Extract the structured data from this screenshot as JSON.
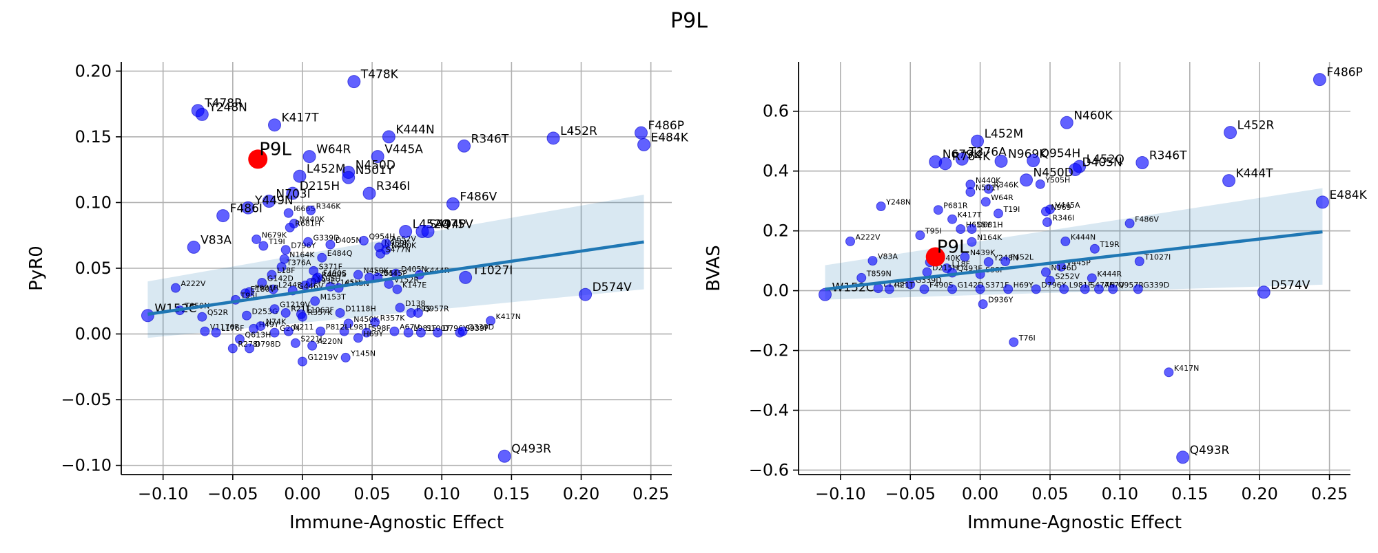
{
  "title": "P9L",
  "chart_data": [
    {
      "type": "scatter",
      "xlabel": "Immune-Agnostic Effect",
      "ylabel": "PyR0",
      "xlim": [
        -0.13,
        0.265
      ],
      "ylim": [
        -0.107,
        0.207
      ],
      "xticks": [
        "−0.10",
        "−0.05",
        "0.00",
        "0.05",
        "0.10",
        "0.15",
        "0.20",
        "0.25"
      ],
      "xtick_values": [
        -0.1,
        -0.05,
        0,
        0.05,
        0.1,
        0.15,
        0.2,
        0.25
      ],
      "yticks": [
        "−0.10",
        "−0.05",
        "0.00",
        "0.05",
        "0.10",
        "0.15",
        "0.20"
      ],
      "ytick_values": [
        -0.1,
        -0.05,
        0,
        0.05,
        0.1,
        0.15,
        0.2
      ],
      "grid": true,
      "highlight": {
        "label": "P9L",
        "x": -0.032,
        "y": 0.133,
        "color": "#ff0000"
      },
      "regression": {
        "x": [
          -0.111,
          0.245
        ],
        "y": [
          0.015,
          0.07
        ],
        "ci_lower_end": 0.034,
        "ci_upper_end": 0.106,
        "ci_lower_start": -0.003,
        "ci_upper_start": 0.04,
        "color": "#1f77b4"
      },
      "points": [
        {
          "label": "T478K",
          "x": 0.037,
          "y": 0.192,
          "big": true
        },
        {
          "label": "T478R",
          "x": -0.075,
          "y": 0.17,
          "big": true
        },
        {
          "label": "Y248N",
          "x": -0.072,
          "y": 0.167,
          "big": true
        },
        {
          "label": "K417T",
          "x": -0.02,
          "y": 0.159,
          "big": true
        },
        {
          "label": "K444N",
          "x": 0.062,
          "y": 0.15,
          "big": true
        },
        {
          "label": "V445A",
          "x": 0.054,
          "y": 0.135,
          "big": true
        },
        {
          "label": "W64R",
          "x": 0.005,
          "y": 0.135,
          "big": true
        },
        {
          "label": "R346T",
          "x": 0.116,
          "y": 0.143,
          "big": true
        },
        {
          "label": "L452R",
          "x": 0.18,
          "y": 0.149,
          "big": true
        },
        {
          "label": "F486P",
          "x": 0.243,
          "y": 0.153,
          "big": true
        },
        {
          "label": "E484K",
          "x": 0.245,
          "y": 0.144,
          "big": true
        },
        {
          "label": "N450D",
          "x": 0.033,
          "y": 0.123,
          "big": true
        },
        {
          "label": "L452M",
          "x": -0.002,
          "y": 0.12,
          "big": true
        },
        {
          "label": "N501Y",
          "x": 0.033,
          "y": 0.119,
          "big": true
        },
        {
          "label": "D215H",
          "x": -0.007,
          "y": 0.107,
          "big": true
        },
        {
          "label": "R346I",
          "x": 0.048,
          "y": 0.107,
          "big": true
        },
        {
          "label": "N703I",
          "x": -0.024,
          "y": 0.101,
          "big": true
        },
        {
          "label": "F486V",
          "x": 0.108,
          "y": 0.099,
          "big": true
        },
        {
          "label": "Y449N",
          "x": -0.039,
          "y": 0.096,
          "big": true
        },
        {
          "label": "F486I",
          "x": -0.057,
          "y": 0.09,
          "big": true
        },
        {
          "label": "I666S",
          "x": -0.01,
          "y": 0.092
        },
        {
          "label": "R346K",
          "x": 0.006,
          "y": 0.094
        },
        {
          "label": "N440K",
          "x": -0.006,
          "y": 0.084
        },
        {
          "label": "R681H",
          "x": -0.009,
          "y": 0.081
        },
        {
          "label": "V83A",
          "x": -0.078,
          "y": 0.066,
          "big": true
        },
        {
          "label": "N679K",
          "x": -0.033,
          "y": 0.072
        },
        {
          "label": "T19I",
          "x": -0.028,
          "y": 0.067
        },
        {
          "label": "D796Y",
          "x": -0.012,
          "y": 0.064
        },
        {
          "label": "T376A",
          "x": -0.015,
          "y": 0.051
        },
        {
          "label": "N164K",
          "x": -0.013,
          "y": 0.057
        },
        {
          "label": "G339D",
          "x": 0.004,
          "y": 0.07
        },
        {
          "label": "D405N",
          "x": 0.02,
          "y": 0.068
        },
        {
          "label": "Q954H",
          "x": 0.044,
          "y": 0.071
        },
        {
          "label": "N969K",
          "x": 0.055,
          "y": 0.066
        },
        {
          "label": "A652V",
          "x": 0.06,
          "y": 0.069
        },
        {
          "label": "N460K",
          "x": 0.06,
          "y": 0.064
        },
        {
          "label": "S477N",
          "x": 0.056,
          "y": 0.061
        },
        {
          "label": "E484Q",
          "x": 0.014,
          "y": 0.058
        },
        {
          "label": "S371F",
          "x": 0.008,
          "y": 0.048
        },
        {
          "label": "L452Q",
          "x": 0.074,
          "y": 0.078,
          "big": true
        },
        {
          "label": "S494P",
          "x": 0.086,
          "y": 0.078,
          "big": true
        },
        {
          "label": "A475V",
          "x": 0.09,
          "y": 0.078,
          "big": true
        },
        {
          "label": "L18F",
          "x": -0.022,
          "y": 0.045
        },
        {
          "label": "G142D",
          "x": -0.029,
          "y": 0.039
        },
        {
          "label": "L244S",
          "x": -0.021,
          "y": 0.034
        },
        {
          "label": "R408S",
          "x": 0.01,
          "y": 0.042
        },
        {
          "label": "Y145H",
          "x": 0.02,
          "y": 0.036
        },
        {
          "label": "N450K",
          "x": 0.04,
          "y": 0.045
        },
        {
          "label": "S255F",
          "x": 0.048,
          "y": 0.043
        },
        {
          "label": "D405N",
          "x": 0.067,
          "y": 0.046
        },
        {
          "label": "K444R",
          "x": 0.084,
          "y": 0.045
        },
        {
          "label": "K147E",
          "x": 0.068,
          "y": 0.034
        },
        {
          "label": "V152R",
          "x": 0.062,
          "y": 0.038
        },
        {
          "label": "A222V",
          "x": -0.091,
          "y": 0.035
        },
        {
          "label": "V445P",
          "x": 0.054,
          "y": 0.043
        },
        {
          "label": "P681R",
          "x": -0.038,
          "y": 0.032
        },
        {
          "label": "E180V",
          "x": -0.041,
          "y": 0.031
        },
        {
          "label": "Q493E",
          "x": 0.002,
          "y": 0.037
        },
        {
          "label": "Y505H",
          "x": 0.006,
          "y": 0.039
        },
        {
          "label": "G446V",
          "x": -0.007,
          "y": 0.033
        },
        {
          "label": "A245N",
          "x": 0.026,
          "y": 0.035
        },
        {
          "label": "F490S",
          "x": 0.011,
          "y": 0.043
        },
        {
          "label": "T1027I",
          "x": 0.117,
          "y": 0.043,
          "big": true
        },
        {
          "label": "D574V",
          "x": 0.203,
          "y": 0.03,
          "big": true
        },
        {
          "label": "T95I",
          "x": -0.048,
          "y": 0.026
        },
        {
          "label": "M153T",
          "x": 0.009,
          "y": 0.025
        },
        {
          "label": "W152C",
          "x": -0.111,
          "y": 0.014,
          "big": true
        },
        {
          "label": "T859N",
          "x": -0.088,
          "y": 0.018
        },
        {
          "label": "Q52R",
          "x": -0.072,
          "y": 0.013
        },
        {
          "label": "D253G",
          "x": -0.04,
          "y": 0.014
        },
        {
          "label": "G1219V",
          "x": -0.02,
          "y": 0.019
        },
        {
          "label": "R21T",
          "x": -0.012,
          "y": 0.016
        },
        {
          "label": "L1063F",
          "x": -0.001,
          "y": 0.015
        },
        {
          "label": "R357K",
          "x": 0.0,
          "y": 0.013
        },
        {
          "label": "D1118H",
          "x": 0.027,
          "y": 0.016
        },
        {
          "label": "N450K",
          "x": 0.033,
          "y": 0.008
        },
        {
          "label": "R357K",
          "x": 0.052,
          "y": 0.009
        },
        {
          "label": "D138",
          "x": 0.07,
          "y": 0.02
        },
        {
          "label": "P9S",
          "x": 0.078,
          "y": 0.016
        },
        {
          "label": "Q957R",
          "x": 0.083,
          "y": 0.016
        },
        {
          "label": "K417N",
          "x": 0.135,
          "y": 0.01
        },
        {
          "label": "V1176F",
          "x": -0.07,
          "y": 0.002
        },
        {
          "label": "L176F",
          "x": -0.062,
          "y": 0.001
        },
        {
          "label": "H49Y",
          "x": -0.035,
          "y": 0.004
        },
        {
          "label": "N74K",
          "x": -0.03,
          "y": 0.006
        },
        {
          "label": "G204",
          "x": -0.02,
          "y": 0.001
        },
        {
          "label": "N211",
          "x": -0.01,
          "y": 0.002
        },
        {
          "label": "L981F",
          "x": 0.03,
          "y": 0.002
        },
        {
          "label": "S98F",
          "x": 0.046,
          "y": 0.001
        },
        {
          "label": "A67V",
          "x": 0.066,
          "y": 0.002
        },
        {
          "label": "L981F",
          "x": 0.076,
          "y": 0.001
        },
        {
          "label": "S1007",
          "x": 0.085,
          "y": 0.001
        },
        {
          "label": "D796Y",
          "x": 0.097,
          "y": 0.001
        },
        {
          "label": "S939F",
          "x": 0.113,
          "y": 0.001
        },
        {
          "label": "G339D",
          "x": 0.115,
          "y": 0.002
        },
        {
          "label": "P812L",
          "x": 0.013,
          "y": 0.002
        },
        {
          "label": "H69Y",
          "x": 0.04,
          "y": -0.003
        },
        {
          "label": "Q613H",
          "x": -0.045,
          "y": -0.004
        },
        {
          "label": "R278I",
          "x": -0.05,
          "y": -0.011
        },
        {
          "label": "D798D",
          "x": -0.038,
          "y": -0.011
        },
        {
          "label": "S221L",
          "x": -0.005,
          "y": -0.007
        },
        {
          "label": "A220N",
          "x": 0.007,
          "y": -0.009
        },
        {
          "label": "Y145N",
          "x": 0.031,
          "y": -0.018
        },
        {
          "label": "G1219V",
          "x": 0.0,
          "y": -0.021
        },
        {
          "label": "Q493R",
          "x": 0.145,
          "y": -0.093,
          "big": true
        }
      ]
    },
    {
      "type": "scatter",
      "xlabel": "Immune-Agnostic Effect",
      "ylabel": "BVAS",
      "xlim": [
        -0.13,
        0.265
      ],
      "ylim": [
        -0.615,
        0.765
      ],
      "xticks": [
        "−0.10",
        "−0.05",
        "0.00",
        "0.05",
        "0.10",
        "0.15",
        "0.20",
        "0.25"
      ],
      "xtick_values": [
        -0.1,
        -0.05,
        0,
        0.05,
        0.1,
        0.15,
        0.2,
        0.25
      ],
      "yticks": [
        "−0.6",
        "−0.4",
        "−0.2",
        "0.0",
        "0.2",
        "0.4",
        "0.6"
      ],
      "ytick_values": [
        -0.6,
        -0.4,
        -0.2,
        0,
        0.2,
        0.4,
        0.6
      ],
      "grid": true,
      "highlight": {
        "label": "P9L",
        "x": -0.032,
        "y": 0.113,
        "color": "#ff0000"
      },
      "regression": {
        "x": [
          -0.111,
          0.245
        ],
        "y": [
          0.005,
          0.197
        ],
        "ci_lower_end": 0.02,
        "ci_upper_end": 0.343,
        "ci_lower_start": -0.03,
        "ci_upper_start": 0.085,
        "color": "#1f77b4"
      },
      "points": [
        {
          "label": "F486P",
          "x": 0.243,
          "y": 0.706,
          "big": true
        },
        {
          "label": "N460K",
          "x": 0.062,
          "y": 0.562,
          "big": true
        },
        {
          "label": "L452R",
          "x": 0.179,
          "y": 0.529,
          "big": true
        },
        {
          "label": "L452M",
          "x": -0.002,
          "y": 0.5,
          "big": true
        },
        {
          "label": "N679K",
          "x": -0.032,
          "y": 0.431,
          "big": true
        },
        {
          "label": "T376A",
          "x": -0.013,
          "y": 0.44,
          "big": true
        },
        {
          "label": "R764K",
          "x": -0.025,
          "y": 0.425,
          "big": true
        },
        {
          "label": "N969K",
          "x": 0.015,
          "y": 0.433,
          "big": true
        },
        {
          "label": "Q954H",
          "x": 0.038,
          "y": 0.435,
          "big": true
        },
        {
          "label": "L452Q",
          "x": 0.071,
          "y": 0.415,
          "big": true
        },
        {
          "label": "D405N",
          "x": 0.068,
          "y": 0.405,
          "big": true
        },
        {
          "label": "R346T",
          "x": 0.116,
          "y": 0.428,
          "big": true
        },
        {
          "label": "K444T",
          "x": 0.178,
          "y": 0.368,
          "big": true
        },
        {
          "label": "N450D",
          "x": 0.033,
          "y": 0.37,
          "big": true
        },
        {
          "label": "Y505H",
          "x": 0.043,
          "y": 0.356
        },
        {
          "label": "N440K",
          "x": -0.007,
          "y": 0.355
        },
        {
          "label": "R346K",
          "x": 0.006,
          "y": 0.34
        },
        {
          "label": "N501Y",
          "x": -0.007,
          "y": 0.33
        },
        {
          "label": "W64R",
          "x": 0.004,
          "y": 0.297
        },
        {
          "label": "E484K",
          "x": 0.245,
          "y": 0.296,
          "big": true
        },
        {
          "label": "Y248N",
          "x": -0.071,
          "y": 0.282
        },
        {
          "label": "P681R",
          "x": -0.03,
          "y": 0.27
        },
        {
          "label": "V445A",
          "x": 0.05,
          "y": 0.272
        },
        {
          "label": "N969",
          "x": 0.047,
          "y": 0.265
        },
        {
          "label": "T19I",
          "x": 0.013,
          "y": 0.258
        },
        {
          "label": "K417T",
          "x": -0.02,
          "y": 0.239
        },
        {
          "label": "R346I",
          "x": 0.048,
          "y": 0.229
        },
        {
          "label": "F486V",
          "x": 0.107,
          "y": 0.225
        },
        {
          "label": "H655Y",
          "x": -0.014,
          "y": 0.206
        },
        {
          "label": "D681H",
          "x": -0.006,
          "y": 0.206
        },
        {
          "label": "T95I",
          "x": -0.043,
          "y": 0.185
        },
        {
          "label": "A222V",
          "x": -0.093,
          "y": 0.165
        },
        {
          "label": "N164K",
          "x": -0.006,
          "y": 0.163
        },
        {
          "label": "K444N",
          "x": 0.061,
          "y": 0.165
        },
        {
          "label": "T19R",
          "x": 0.082,
          "y": 0.14
        },
        {
          "label": "V83A",
          "x": -0.077,
          "y": 0.1
        },
        {
          "label": "N439K",
          "x": -0.011,
          "y": 0.113
        },
        {
          "label": "N440K",
          "x": -0.036,
          "y": 0.095
        },
        {
          "label": "Y248N",
          "x": 0.006,
          "y": 0.096
        },
        {
          "label": "F452L",
          "x": 0.018,
          "y": 0.098
        },
        {
          "label": "T1027I",
          "x": 0.114,
          "y": 0.098
        },
        {
          "label": "L18F",
          "x": -0.024,
          "y": 0.075
        },
        {
          "label": "V445P",
          "x": 0.058,
          "y": 0.08
        },
        {
          "label": "D215H",
          "x": -0.038,
          "y": 0.062
        },
        {
          "label": "Q493E",
          "x": -0.02,
          "y": 0.06
        },
        {
          "label": "N146D",
          "x": 0.047,
          "y": 0.062
        },
        {
          "label": "S98F",
          "x": 0.0,
          "y": 0.055
        },
        {
          "label": "T859N",
          "x": -0.085,
          "y": 0.043
        },
        {
          "label": "K444R",
          "x": 0.08,
          "y": 0.042
        },
        {
          "label": "S252V",
          "x": 0.05,
          "y": 0.034
        },
        {
          "label": "G339D",
          "x": -0.05,
          "y": 0.021
        },
        {
          "label": "W152C",
          "x": -0.111,
          "y": -0.013,
          "big": true
        },
        {
          "label": "L176F",
          "x": -0.073,
          "y": 0.008
        },
        {
          "label": "R21T",
          "x": -0.065,
          "y": 0.005
        },
        {
          "label": "F490S",
          "x": -0.04,
          "y": 0.005
        },
        {
          "label": "G142D",
          "x": -0.02,
          "y": 0.005
        },
        {
          "label": "S371F",
          "x": 0.0,
          "y": 0.005
        },
        {
          "label": "H69Y",
          "x": 0.02,
          "y": 0.005
        },
        {
          "label": "D796Y",
          "x": 0.04,
          "y": 0.005
        },
        {
          "label": "L981F",
          "x": 0.06,
          "y": 0.005
        },
        {
          "label": "S477N",
          "x": 0.075,
          "y": 0.005
        },
        {
          "label": "A67V",
          "x": 0.085,
          "y": 0.005
        },
        {
          "label": "Q957R",
          "x": 0.095,
          "y": 0.005
        },
        {
          "label": "G339D",
          "x": 0.113,
          "y": 0.005
        },
        {
          "label": "D574V",
          "x": 0.203,
          "y": -0.005,
          "big": true
        },
        {
          "label": "D936Y",
          "x": 0.002,
          "y": -0.045
        },
        {
          "label": "T76I",
          "x": 0.024,
          "y": -0.172
        },
        {
          "label": "K417N",
          "x": 0.135,
          "y": -0.273
        },
        {
          "label": "Q493R",
          "x": 0.145,
          "y": -0.557,
          "big": true
        }
      ]
    }
  ]
}
